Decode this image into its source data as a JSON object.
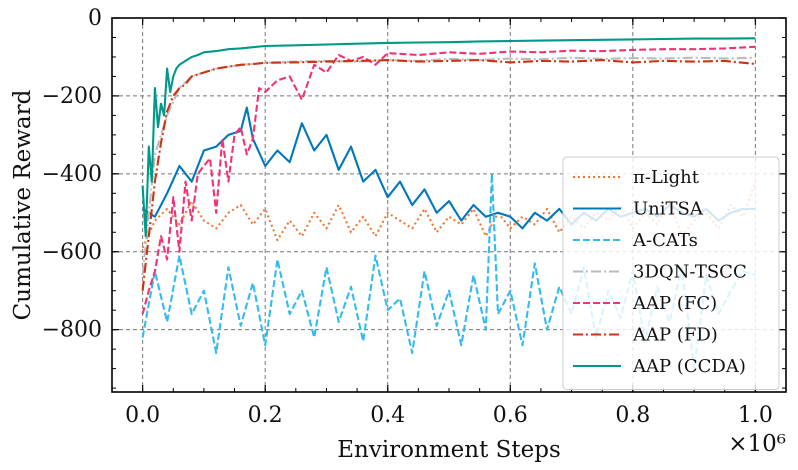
{
  "chart_data": {
    "type": "line",
    "title": "",
    "xlabel": "Environment Steps",
    "ylabel": "Cumulative Reward",
    "x_multiplier_label": "×10⁶",
    "xlim": [
      -0.05,
      1.05
    ],
    "ylim": [
      -960,
      0
    ],
    "xticks": [
      0.0,
      0.2,
      0.4,
      0.6,
      0.8,
      1.0
    ],
    "xtick_labels": [
      "0.0",
      "0.2",
      "0.4",
      "0.6",
      "0.8",
      "1.0"
    ],
    "yticks": [
      0,
      -200,
      -400,
      -600,
      -800
    ],
    "ytick_labels": [
      "0",
      "−200",
      "−400",
      "−600",
      "−800"
    ],
    "grid": true,
    "legend_position": "lower-right",
    "series": [
      {
        "name": "π-Light",
        "color": "#EE7733",
        "dash": "dotted",
        "x": [
          0.0,
          0.02,
          0.04,
          0.06,
          0.08,
          0.1,
          0.12,
          0.14,
          0.16,
          0.18,
          0.2,
          0.22,
          0.24,
          0.26,
          0.28,
          0.3,
          0.32,
          0.34,
          0.36,
          0.38,
          0.4,
          0.42,
          0.44,
          0.46,
          0.48,
          0.5,
          0.52,
          0.54,
          0.56,
          0.58,
          0.6,
          0.62,
          0.64,
          0.66,
          0.68,
          0.7,
          0.72,
          0.74,
          0.76,
          0.78,
          0.8,
          0.82,
          0.84,
          0.86,
          0.88,
          0.9,
          0.92,
          0.94,
          0.96,
          0.98,
          1.0
        ],
        "values": [
          -590,
          -520,
          -490,
          -530,
          -470,
          -520,
          -540,
          -500,
          -480,
          -530,
          -490,
          -570,
          -520,
          -560,
          -500,
          -540,
          -480,
          -550,
          -510,
          -560,
          -500,
          -520,
          -540,
          -490,
          -550,
          -510,
          -530,
          -490,
          -560,
          -500,
          -540,
          -510,
          -530,
          -490,
          -550,
          -510,
          -540,
          -500,
          -520,
          -480,
          -540,
          -500,
          -530,
          -470,
          -560,
          -520,
          -500,
          -540,
          -480,
          -510,
          -420
        ]
      },
      {
        "name": "UniTSA",
        "color": "#0077BB",
        "dash": "solid",
        "x": [
          0.0,
          0.02,
          0.04,
          0.06,
          0.08,
          0.1,
          0.12,
          0.14,
          0.16,
          0.17,
          0.18,
          0.2,
          0.22,
          0.24,
          0.26,
          0.28,
          0.3,
          0.32,
          0.34,
          0.36,
          0.38,
          0.4,
          0.42,
          0.44,
          0.46,
          0.48,
          0.5,
          0.52,
          0.54,
          0.56,
          0.58,
          0.6,
          0.62,
          0.64,
          0.66,
          0.68,
          0.7,
          0.72,
          0.74,
          0.76,
          0.78,
          0.8,
          0.82,
          0.84,
          0.86,
          0.88,
          0.9,
          0.92,
          0.94,
          0.96,
          0.98,
          1.0
        ],
        "values": [
          -490,
          -510,
          -450,
          -380,
          -420,
          -340,
          -330,
          -300,
          -290,
          -230,
          -310,
          -380,
          -340,
          -370,
          -270,
          -340,
          -300,
          -390,
          -330,
          -420,
          -390,
          -460,
          -420,
          -480,
          -440,
          -500,
          -470,
          -520,
          -480,
          -510,
          -500,
          -510,
          -540,
          -500,
          -520,
          -490,
          -530,
          -500,
          -520,
          -490,
          -510,
          -500,
          -490,
          -510,
          -480,
          -500,
          -510,
          -490,
          -520,
          -500,
          -490,
          -490
        ]
      },
      {
        "name": "A-CATs",
        "color": "#33BBEE",
        "dash": "dashed",
        "x": [
          0.0,
          0.02,
          0.04,
          0.06,
          0.08,
          0.1,
          0.12,
          0.14,
          0.16,
          0.18,
          0.2,
          0.22,
          0.24,
          0.26,
          0.28,
          0.3,
          0.32,
          0.34,
          0.36,
          0.38,
          0.4,
          0.42,
          0.44,
          0.46,
          0.48,
          0.5,
          0.52,
          0.54,
          0.56,
          0.57,
          0.58,
          0.6,
          0.62,
          0.64,
          0.66,
          0.68,
          0.7,
          0.72,
          0.74,
          0.76,
          0.78,
          0.8,
          0.82,
          0.84,
          0.86,
          0.88,
          0.9,
          0.92,
          0.94,
          0.96,
          0.98,
          1.0
        ],
        "values": [
          -820,
          -650,
          -780,
          -610,
          -760,
          -700,
          -860,
          -640,
          -790,
          -680,
          -840,
          -620,
          -760,
          -700,
          -820,
          -640,
          -780,
          -690,
          -830,
          -610,
          -750,
          -720,
          -860,
          -650,
          -790,
          -700,
          -840,
          -660,
          -800,
          -400,
          -760,
          -700,
          -840,
          -630,
          -800,
          -690,
          -760,
          -640,
          -820,
          -700,
          -770,
          -650,
          -830,
          -690,
          -780,
          -640,
          -900,
          -660,
          -760,
          -700,
          -650,
          -660
        ]
      },
      {
        "name": "3DQN-TSCC",
        "color": "#BBBBBB",
        "dash": "dashdot",
        "x": [
          0.0,
          0.02,
          0.04,
          0.06,
          0.08,
          0.1,
          0.12,
          0.14,
          0.16,
          0.18,
          0.2,
          0.25,
          0.3,
          0.35,
          0.4,
          0.45,
          0.5,
          0.55,
          0.6,
          0.65,
          0.7,
          0.75,
          0.8,
          0.85,
          0.9,
          0.95,
          1.0
        ],
        "values": [
          -660,
          -350,
          -250,
          -180,
          -150,
          -140,
          -130,
          -125,
          -120,
          -118,
          -115,
          -112,
          -110,
          -112,
          -108,
          -110,
          -105,
          -108,
          -104,
          -106,
          -102,
          -105,
          -103,
          -104,
          -102,
          -104,
          -102
        ]
      },
      {
        "name": "AAP (FC)",
        "color": "#EE3377",
        "dash": "dashed",
        "x": [
          0.0,
          0.01,
          0.02,
          0.03,
          0.04,
          0.05,
          0.06,
          0.07,
          0.08,
          0.09,
          0.1,
          0.11,
          0.12,
          0.13,
          0.14,
          0.15,
          0.16,
          0.17,
          0.18,
          0.19,
          0.2,
          0.22,
          0.24,
          0.26,
          0.28,
          0.3,
          0.32,
          0.34,
          0.36,
          0.38,
          0.4,
          0.45,
          0.5,
          0.55,
          0.6,
          0.65,
          0.7,
          0.75,
          0.8,
          0.85,
          0.9,
          0.95,
          1.0
        ],
        "values": [
          -760,
          -700,
          -650,
          -560,
          -620,
          -460,
          -600,
          -420,
          -520,
          -400,
          -380,
          -360,
          -500,
          -310,
          -420,
          -300,
          -280,
          -350,
          -310,
          -180,
          -190,
          -160,
          -150,
          -210,
          -120,
          -140,
          -95,
          -110,
          -100,
          -120,
          -90,
          -95,
          -88,
          -92,
          -86,
          -88,
          -84,
          -85,
          -82,
          -80,
          -80,
          -78,
          -74
        ]
      },
      {
        "name": "AAP (FD)",
        "color": "#CC3311",
        "dash": "dashdot",
        "x": [
          0.0,
          0.01,
          0.02,
          0.03,
          0.04,
          0.05,
          0.06,
          0.07,
          0.08,
          0.1,
          0.12,
          0.14,
          0.16,
          0.18,
          0.2,
          0.25,
          0.3,
          0.35,
          0.4,
          0.45,
          0.5,
          0.55,
          0.6,
          0.65,
          0.7,
          0.75,
          0.8,
          0.85,
          0.9,
          0.95,
          1.0
        ],
        "values": [
          -700,
          -560,
          -420,
          -320,
          -240,
          -200,
          -180,
          -170,
          -150,
          -140,
          -130,
          -125,
          -120,
          -118,
          -115,
          -114,
          -112,
          -110,
          -108,
          -112,
          -110,
          -108,
          -114,
          -110,
          -112,
          -108,
          -114,
          -110,
          -112,
          -110,
          -118
        ]
      },
      {
        "name": "AAP (CCDA)",
        "color": "#009988",
        "dash": "solid",
        "x": [
          0.0,
          0.005,
          0.01,
          0.015,
          0.02,
          0.025,
          0.03,
          0.035,
          0.04,
          0.045,
          0.05,
          0.055,
          0.06,
          0.07,
          0.08,
          0.09,
          0.1,
          0.12,
          0.14,
          0.16,
          0.18,
          0.2,
          0.25,
          0.3,
          0.35,
          0.4,
          0.45,
          0.5,
          0.55,
          0.6,
          0.65,
          0.7,
          0.75,
          0.8,
          0.85,
          0.9,
          0.95,
          1.0
        ],
        "values": [
          -430,
          -560,
          -330,
          -420,
          -180,
          -280,
          -220,
          -250,
          -130,
          -190,
          -150,
          -130,
          -120,
          -110,
          -100,
          -95,
          -88,
          -85,
          -80,
          -78,
          -75,
          -72,
          -70,
          -68,
          -66,
          -64,
          -63,
          -62,
          -60,
          -59,
          -58,
          -57,
          -56,
          -55,
          -54,
          -53,
          -53,
          -52
        ]
      }
    ]
  }
}
